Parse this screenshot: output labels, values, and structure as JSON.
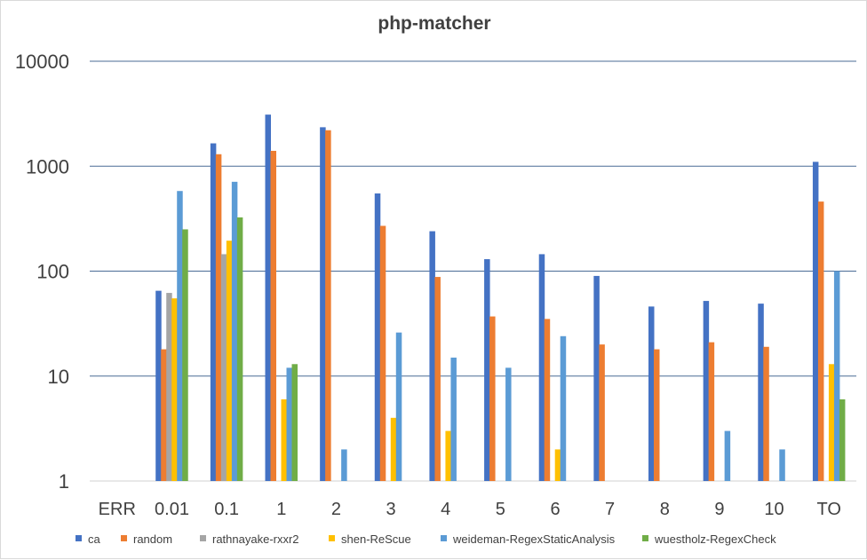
{
  "chart_data": {
    "type": "bar",
    "title": "php-matcher",
    "xlabel": "",
    "ylabel": "",
    "y_scale": "log",
    "ylim": [
      1,
      10000
    ],
    "y_ticks": [
      "1",
      "10",
      "100",
      "1000",
      "10000"
    ],
    "y_tick_values": [
      1,
      10,
      100,
      1000,
      10000
    ],
    "grid": true,
    "legend_position": "bottom",
    "categories": [
      "ERR",
      "0.01",
      "0.1",
      "1",
      "2",
      "3",
      "4",
      "5",
      "6",
      "7",
      "8",
      "9",
      "10",
      "TO"
    ],
    "series": [
      {
        "name": "ca",
        "color": "#4472c4",
        "values": [
          null,
          65,
          1650,
          3100,
          2350,
          550,
          240,
          130,
          145,
          90,
          46,
          52,
          49,
          1100
        ]
      },
      {
        "name": "random",
        "color": "#ed7d31",
        "values": [
          null,
          18,
          1300,
          1400,
          2200,
          270,
          88,
          37,
          35,
          20,
          18,
          21,
          19,
          460
        ]
      },
      {
        "name": "rathnayake-rxxr2",
        "color": "#a5a5a5",
        "values": [
          null,
          62,
          145,
          null,
          null,
          null,
          null,
          null,
          null,
          null,
          null,
          null,
          null,
          null
        ]
      },
      {
        "name": "shen-ReScue",
        "color": "#ffc000",
        "values": [
          null,
          55,
          195,
          6,
          null,
          4,
          3,
          null,
          2,
          null,
          null,
          null,
          null,
          13
        ]
      },
      {
        "name": "weideman-RegexStaticAnalysis",
        "color": "#5b9bd5",
        "values": [
          null,
          580,
          710,
          12,
          2,
          26,
          15,
          12,
          24,
          null,
          null,
          3,
          2,
          100
        ]
      },
      {
        "name": "wuestholz-RegexCheck",
        "color": "#70ad47",
        "values": [
          null,
          250,
          325,
          13,
          null,
          null,
          null,
          null,
          null,
          null,
          null,
          null,
          null,
          6
        ]
      }
    ]
  }
}
